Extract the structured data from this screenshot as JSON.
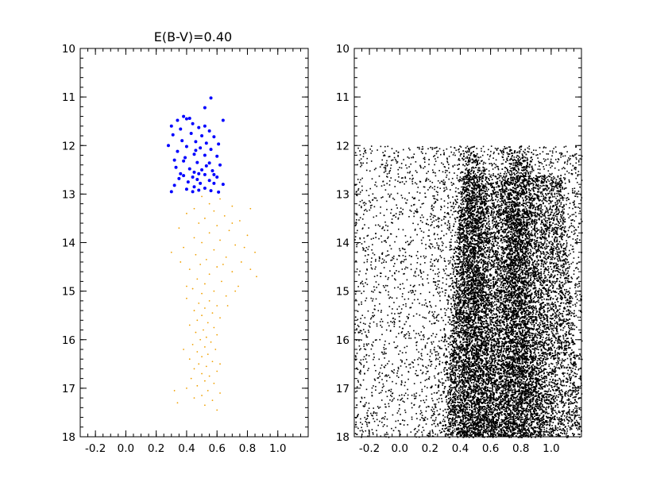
{
  "chart_data": [
    {
      "type": "scatter",
      "title": "E(B-V)=0.40",
      "xlabel": "",
      "ylabel": "",
      "xlim": [
        -0.3,
        1.2
      ],
      "ylim": [
        18,
        10
      ],
      "y_inverted": true,
      "grid": false,
      "legend": "none",
      "x_ticks": [
        -0.2,
        0.0,
        0.2,
        0.4,
        0.6,
        0.8,
        1.0
      ],
      "x_tick_labels": [
        "-0.2",
        "0.0",
        "0.2",
        "0.4",
        "0.6",
        "0.8",
        "1.0"
      ],
      "y_ticks": [
        10,
        11,
        12,
        13,
        14,
        15,
        16,
        17,
        18
      ],
      "y_tick_labels": [
        "10",
        "11",
        "12",
        "13",
        "14",
        "15",
        "16",
        "17",
        "18"
      ],
      "series": [
        {
          "color": "#0000ff",
          "marker_size": "medium",
          "points": [
            [
              0.56,
              11.02
            ],
            [
              0.52,
              11.22
            ],
            [
              0.38,
              11.4
            ],
            [
              0.42,
              11.44
            ],
            [
              0.34,
              11.48
            ],
            [
              0.4,
              11.45
            ],
            [
              0.64,
              11.48
            ],
            [
              0.44,
              11.55
            ],
            [
              0.3,
              11.6
            ],
            [
              0.52,
              11.6
            ],
            [
              0.36,
              11.66
            ],
            [
              0.48,
              11.63
            ],
            [
              0.55,
              11.7
            ],
            [
              0.43,
              11.75
            ],
            [
              0.31,
              11.78
            ],
            [
              0.5,
              11.8
            ],
            [
              0.58,
              11.82
            ],
            [
              0.37,
              11.9
            ],
            [
              0.46,
              11.92
            ],
            [
              0.53,
              11.95
            ],
            [
              0.61,
              11.97
            ],
            [
              0.28,
              12.0
            ],
            [
              0.4,
              12.02
            ],
            [
              0.49,
              12.05
            ],
            [
              0.56,
              12.08
            ],
            [
              0.34,
              12.12
            ],
            [
              0.45,
              12.18
            ],
            [
              0.52,
              12.2
            ],
            [
              0.6,
              12.22
            ],
            [
              0.32,
              12.3
            ],
            [
              0.38,
              12.32
            ],
            [
              0.47,
              12.35
            ],
            [
              0.55,
              12.36
            ],
            [
              0.62,
              12.4
            ],
            [
              0.33,
              12.45
            ],
            [
              0.42,
              12.48
            ],
            [
              0.5,
              12.5
            ],
            [
              0.57,
              12.52
            ],
            [
              0.45,
              12.55
            ],
            [
              0.48,
              12.58
            ],
            [
              0.52,
              12.6
            ],
            [
              0.38,
              12.62
            ],
            [
              0.44,
              12.65
            ],
            [
              0.6,
              12.65
            ],
            [
              0.35,
              12.68
            ],
            [
              0.47,
              12.7
            ],
            [
              0.55,
              12.72
            ],
            [
              0.41,
              12.75
            ],
            [
              0.49,
              12.78
            ],
            [
              0.58,
              12.78
            ],
            [
              0.64,
              12.8
            ],
            [
              0.32,
              12.82
            ],
            [
              0.45,
              12.85
            ],
            [
              0.52,
              12.88
            ],
            [
              0.4,
              12.9
            ],
            [
              0.48,
              12.92
            ],
            [
              0.56,
              12.93
            ],
            [
              0.3,
              12.95
            ],
            [
              0.44,
              12.95
            ],
            [
              0.61,
              12.96
            ],
            [
              0.36,
              12.58
            ],
            [
              0.53,
              12.42
            ],
            [
              0.46,
              12.1
            ],
            [
              0.39,
              12.25
            ],
            [
              0.58,
              12.6
            ]
          ]
        },
        {
          "color": "#f0a000",
          "marker_size": "small",
          "points": [
            [
              0.5,
              13.05
            ],
            [
              0.62,
              13.1
            ],
            [
              0.55,
              13.2
            ],
            [
              0.7,
              13.25
            ],
            [
              0.45,
              13.3
            ],
            [
              0.58,
              13.35
            ],
            [
              0.82,
              13.3
            ],
            [
              0.4,
              13.4
            ],
            [
              0.65,
              13.45
            ],
            [
              0.52,
              13.5
            ],
            [
              0.75,
              13.55
            ],
            [
              0.48,
              13.6
            ],
            [
              0.6,
              13.65
            ],
            [
              0.35,
              13.7
            ],
            [
              0.68,
              13.75
            ],
            [
              0.55,
              13.8
            ],
            [
              0.8,
              13.85
            ],
            [
              0.45,
              13.9
            ],
            [
              0.62,
              13.95
            ],
            [
              0.5,
              14.0
            ],
            [
              0.72,
              14.05
            ],
            [
              0.38,
              14.1
            ],
            [
              0.58,
              14.15
            ],
            [
              0.85,
              14.2
            ],
            [
              0.46,
              14.25
            ],
            [
              0.66,
              14.3
            ],
            [
              0.53,
              14.35
            ],
            [
              0.3,
              14.2
            ],
            [
              0.76,
              14.4
            ],
            [
              0.49,
              14.45
            ],
            [
              0.6,
              14.5
            ],
            [
              0.42,
              14.55
            ],
            [
              0.7,
              14.6
            ],
            [
              0.55,
              14.65
            ],
            [
              0.86,
              14.7
            ],
            [
              0.47,
              14.75
            ],
            [
              0.63,
              14.8
            ],
            [
              0.52,
              14.85
            ],
            [
              0.74,
              14.9
            ],
            [
              0.44,
              14.95
            ],
            [
              0.58,
              15.0
            ],
            [
              0.5,
              15.05
            ],
            [
              0.66,
              15.1
            ],
            [
              0.4,
              15.15
            ],
            [
              0.55,
              15.2
            ],
            [
              0.48,
              15.25
            ],
            [
              0.6,
              15.3
            ],
            [
              0.52,
              15.35
            ],
            [
              0.45,
              15.4
            ],
            [
              0.57,
              15.45
            ],
            [
              0.5,
              15.5
            ],
            [
              0.62,
              15.55
            ],
            [
              0.47,
              15.6
            ],
            [
              0.54,
              15.65
            ],
            [
              0.42,
              15.7
            ],
            [
              0.58,
              15.75
            ],
            [
              0.51,
              15.8
            ],
            [
              0.46,
              15.85
            ],
            [
              0.6,
              15.9
            ],
            [
              0.53,
              15.95
            ],
            [
              0.49,
              16.0
            ],
            [
              0.56,
              16.05
            ],
            [
              0.44,
              16.1
            ],
            [
              0.52,
              16.15
            ],
            [
              0.59,
              16.2
            ],
            [
              0.47,
              16.25
            ],
            [
              0.54,
              16.3
            ],
            [
              0.5,
              16.35
            ],
            [
              0.42,
              16.4
            ],
            [
              0.57,
              16.45
            ],
            [
              0.48,
              16.5
            ],
            [
              0.53,
              16.55
            ],
            [
              0.45,
              16.6
            ],
            [
              0.6,
              16.65
            ],
            [
              0.5,
              16.7
            ],
            [
              0.55,
              16.75
            ],
            [
              0.43,
              16.8
            ],
            [
              0.52,
              16.85
            ],
            [
              0.58,
              16.9
            ],
            [
              0.47,
              16.95
            ],
            [
              0.4,
              17.0
            ],
            [
              0.54,
              17.05
            ],
            [
              0.32,
              17.05
            ],
            [
              0.62,
              17.1
            ],
            [
              0.5,
              17.15
            ],
            [
              0.45,
              17.2
            ],
            [
              0.57,
              17.25
            ],
            [
              0.34,
              17.3
            ],
            [
              0.52,
              17.35
            ],
            [
              0.6,
              17.45
            ],
            [
              0.7,
              13.6
            ],
            [
              0.78,
              14.1
            ],
            [
              0.64,
              14.45
            ],
            [
              0.82,
              14.55
            ],
            [
              0.72,
              15.0
            ],
            [
              0.36,
              14.4
            ],
            [
              0.4,
              14.9
            ],
            [
              0.67,
              15.3
            ],
            [
              0.38,
              16.2
            ],
            [
              0.62,
              16.5
            ]
          ]
        }
      ]
    },
    {
      "type": "scatter",
      "title": "",
      "xlabel": "",
      "ylabel": "",
      "xlim": [
        -0.3,
        1.2
      ],
      "ylim": [
        18,
        10
      ],
      "y_inverted": true,
      "grid": false,
      "legend": "none",
      "x_ticks": [
        -0.2,
        0.0,
        0.2,
        0.4,
        0.6,
        0.8,
        1.0
      ],
      "x_tick_labels": [
        "-0.2",
        "0.0",
        "0.2",
        "0.4",
        "0.6",
        "0.8",
        "1.0"
      ],
      "y_ticks": [
        10,
        11,
        12,
        13,
        14,
        15,
        16,
        17,
        18
      ],
      "y_tick_labels": [
        "10",
        "11",
        "12",
        "13",
        "14",
        "15",
        "16",
        "17",
        "18"
      ],
      "magnitude_range": [
        12,
        18
      ],
      "color_range": [
        -0.3,
        1.2
      ],
      "description_of_density": "uniform sparse field across full color range, dense black plume from color ~0.4 to 1.2 with two peaks near 0.45 and 0.75 reaching magnitude 12",
      "series": [
        {
          "color": "#000000",
          "marker_size": "tiny"
        }
      ]
    }
  ]
}
